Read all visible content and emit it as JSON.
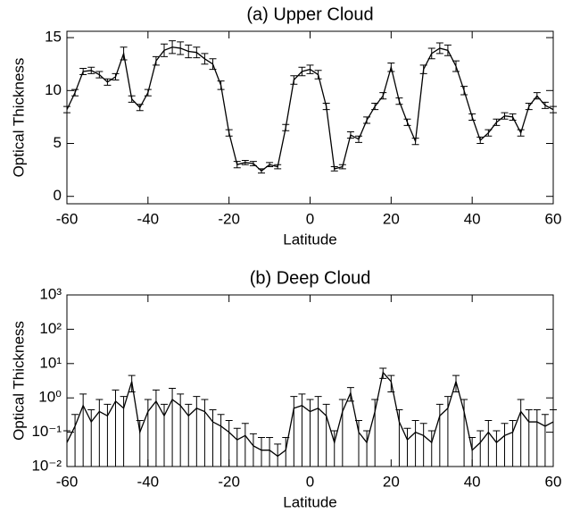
{
  "chart_data": [
    {
      "type": "line",
      "title": "(a) Upper Cloud",
      "xlabel": "Latitude",
      "ylabel": "Optical Thickness",
      "color": "#000000",
      "log": false,
      "x": [
        -60,
        -58,
        -56,
        -54,
        -52,
        -50,
        -48,
        -46,
        -44,
        -42,
        -40,
        -38,
        -36,
        -34,
        -32,
        -30,
        -28,
        -26,
        -24,
        -22,
        -20,
        -18,
        -16,
        -14,
        -12,
        -10,
        -8,
        -6,
        -4,
        -2,
        0,
        2,
        4,
        6,
        8,
        10,
        12,
        14,
        16,
        18,
        20,
        22,
        24,
        26,
        28,
        30,
        32,
        34,
        36,
        38,
        40,
        42,
        44,
        46,
        48,
        50,
        52,
        54,
        56,
        58,
        60
      ],
      "values": [
        8.2,
        9.8,
        11.8,
        11.9,
        11.5,
        10.8,
        11.3,
        13.5,
        9.2,
        8.4,
        9.8,
        12.8,
        13.8,
        14.1,
        14.0,
        13.7,
        13.6,
        13.0,
        12.5,
        10.5,
        6.0,
        3.0,
        3.2,
        3.1,
        2.4,
        3.0,
        2.8,
        6.5,
        11.0,
        11.8,
        12.0,
        11.5,
        8.5,
        2.6,
        2.8,
        5.8,
        5.4,
        7.2,
        8.5,
        9.5,
        12.2,
        9.0,
        7.0,
        5.2,
        12.0,
        13.5,
        14.0,
        13.8,
        12.3,
        10.0,
        7.5,
        5.3,
        6.0,
        7.0,
        7.6,
        7.5,
        6.0,
        8.5,
        9.5,
        8.6,
        8.2
      ],
      "errors": [
        0.3,
        0.3,
        0.3,
        0.3,
        0.3,
        0.3,
        0.3,
        0.6,
        0.3,
        0.3,
        0.3,
        0.4,
        0.6,
        0.6,
        0.6,
        0.6,
        0.5,
        0.5,
        0.5,
        0.4,
        0.3,
        0.3,
        0.2,
        0.2,
        0.2,
        0.2,
        0.2,
        0.3,
        0.4,
        0.4,
        0.4,
        0.4,
        0.3,
        0.2,
        0.2,
        0.3,
        0.3,
        0.3,
        0.3,
        0.3,
        0.4,
        0.3,
        0.3,
        0.3,
        0.4,
        0.5,
        0.5,
        0.5,
        0.5,
        0.4,
        0.3,
        0.3,
        0.3,
        0.3,
        0.3,
        0.3,
        0.3,
        0.3,
        0.3,
        0.3,
        0.3
      ],
      "xlim": [
        -60,
        60
      ],
      "xticks": [
        -60,
        -40,
        -20,
        0,
        20,
        40,
        60
      ],
      "ylim": [
        -0.7,
        15.6
      ],
      "yticks": [
        0,
        5,
        10,
        15
      ]
    },
    {
      "type": "line",
      "title": "(b) Deep Cloud",
      "xlabel": "Latitude",
      "ylabel": "Optical Thickness",
      "color": "#000000",
      "log": true,
      "x": [
        -60,
        -58,
        -56,
        -54,
        -52,
        -50,
        -48,
        -46,
        -44,
        -42,
        -40,
        -38,
        -36,
        -34,
        -32,
        -30,
        -28,
        -26,
        -24,
        -22,
        -20,
        -18,
        -16,
        -14,
        -12,
        -10,
        -8,
        -6,
        -4,
        -2,
        0,
        2,
        4,
        6,
        8,
        10,
        12,
        14,
        16,
        18,
        20,
        22,
        24,
        26,
        28,
        30,
        32,
        34,
        36,
        38,
        40,
        42,
        44,
        46,
        48,
        50,
        52,
        54,
        56,
        58,
        60
      ],
      "values": [
        0.05,
        0.15,
        0.6,
        0.2,
        0.4,
        0.3,
        0.8,
        0.5,
        3.0,
        0.1,
        0.4,
        0.8,
        0.3,
        0.9,
        0.6,
        0.3,
        0.5,
        0.4,
        0.2,
        0.15,
        0.1,
        0.06,
        0.08,
        0.04,
        0.03,
        0.03,
        0.02,
        0.03,
        0.5,
        0.6,
        0.4,
        0.5,
        0.3,
        0.05,
        0.4,
        1.4,
        0.1,
        0.05,
        0.4,
        5.5,
        3.0,
        0.2,
        0.06,
        0.1,
        0.08,
        0.05,
        0.3,
        0.5,
        3.0,
        0.4,
        0.03,
        0.05,
        0.1,
        0.05,
        0.08,
        0.1,
        0.4,
        0.2,
        0.2,
        0.15,
        0.2
      ],
      "errors": [
        0.06,
        0.18,
        0.7,
        0.25,
        0.5,
        0.35,
        0.9,
        0.6,
        1.5,
        0.12,
        0.5,
        0.9,
        0.35,
        1.0,
        0.7,
        0.35,
        0.6,
        0.5,
        0.25,
        0.18,
        0.12,
        0.07,
        0.1,
        0.05,
        0.04,
        0.04,
        0.025,
        0.04,
        0.6,
        0.7,
        0.5,
        0.6,
        0.35,
        0.06,
        0.5,
        0.6,
        0.12,
        0.06,
        0.5,
        1.8,
        1.5,
        0.25,
        0.07,
        0.12,
        0.1,
        0.06,
        0.35,
        0.6,
        1.5,
        0.5,
        0.04,
        0.06,
        0.12,
        0.06,
        0.1,
        0.12,
        0.5,
        0.25,
        0.25,
        0.18,
        0.25
      ],
      "xlim": [
        -60,
        60
      ],
      "xticks": [
        -60,
        -40,
        -20,
        0,
        20,
        40,
        60
      ],
      "ylim": [
        0.01,
        1000
      ],
      "yticks": [
        {
          "value": 0.01,
          "label": "10⁻²"
        },
        {
          "value": 0.1,
          "label": "10⁻¹"
        },
        {
          "value": 1,
          "label": "10⁰"
        },
        {
          "value": 10,
          "label": "10¹"
        },
        {
          "value": 100,
          "label": "10²"
        },
        {
          "value": 1000,
          "label": "10³"
        }
      ]
    }
  ]
}
